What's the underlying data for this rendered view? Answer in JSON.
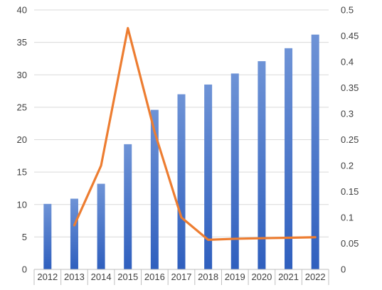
{
  "chart_data": {
    "type": "bar",
    "categories": [
      "2012",
      "2013",
      "2014",
      "2015",
      "2016",
      "2017",
      "2018",
      "2019",
      "2020",
      "2021",
      "2022"
    ],
    "series": [
      {
        "axis": "left",
        "mark": "bar",
        "color": "#4472C4",
        "values": [
          10.1,
          10.9,
          13.2,
          19.3,
          24.6,
          27.0,
          28.5,
          30.2,
          32.1,
          34.1,
          36.2
        ]
      },
      {
        "axis": "right",
        "mark": "line",
        "color": "#ED7D31",
        "values": [
          null,
          0.085,
          0.2,
          0.465,
          0.265,
          0.1,
          0.057,
          0.059,
          0.06,
          0.061,
          0.062
        ]
      }
    ],
    "y_left": {
      "min": 0,
      "max": 40,
      "step": 5,
      "ticks": [
        "0",
        "5",
        "10",
        "15",
        "20",
        "25",
        "30",
        "35",
        "40"
      ]
    },
    "y_right": {
      "min": 0,
      "max": 0.5,
      "step": 0.05,
      "ticks": [
        "0",
        "0.05",
        "0.1",
        "0.15",
        "0.2",
        "0.25",
        "0.3",
        "0.35",
        "0.4",
        "0.45",
        "0.5"
      ]
    },
    "grid": true,
    "legend": "none"
  }
}
